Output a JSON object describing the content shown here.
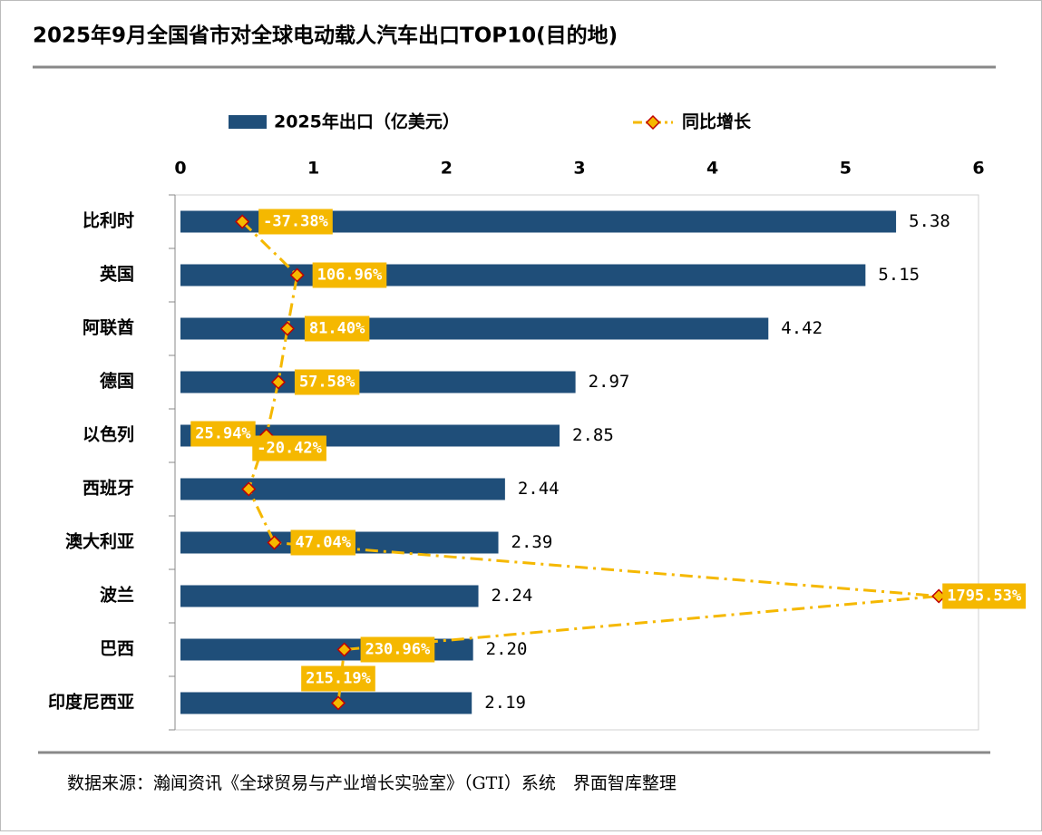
{
  "chart_data": {
    "type": "bar",
    "title": "2025年9月全国省市对全球电动载人汽车出口TOP10(目的地)",
    "categories": [
      "比利时",
      "英国",
      "阿联酋",
      "德国",
      "以色列",
      "西班牙",
      "澳大利亚",
      "波兰",
      "巴西",
      "印度尼西亚"
    ],
    "series": [
      {
        "name": "2025年出口（亿美元）",
        "color": "#1f4e79",
        "values": [
          5.38,
          5.15,
          4.42,
          2.97,
          2.85,
          2.44,
          2.39,
          2.24,
          2.2,
          2.19
        ],
        "value_labels": [
          "5.38",
          "5.15",
          "4.42",
          "2.97",
          "2.85",
          "2.44",
          "2.39",
          "2.24",
          "2.20",
          "2.19"
        ]
      },
      {
        "name": "同比增长",
        "type": "line",
        "axis": "x2",
        "color": "#f5b800",
        "values": [
          -37.38,
          106.96,
          81.4,
          57.58,
          25.94,
          -20.42,
          47.04,
          1795.53,
          230.96,
          215.19
        ],
        "value_labels": [
          "-37.38%",
          "106.96%",
          "81.40%",
          "57.58%",
          "25.94%",
          "-20.42%",
          "47.04%",
          "1795.53%",
          "230.96%",
          "215.19%"
        ]
      }
    ],
    "xlim": [
      0,
      6
    ],
    "xticks": [
      0,
      1,
      2,
      3,
      4,
      5,
      6
    ],
    "x2lim": [
      -200,
      1900
    ],
    "source": "数据来源：瀚闻资讯《全球贸易与产业增长实验室》（GTI）系统　界面智库整理"
  }
}
